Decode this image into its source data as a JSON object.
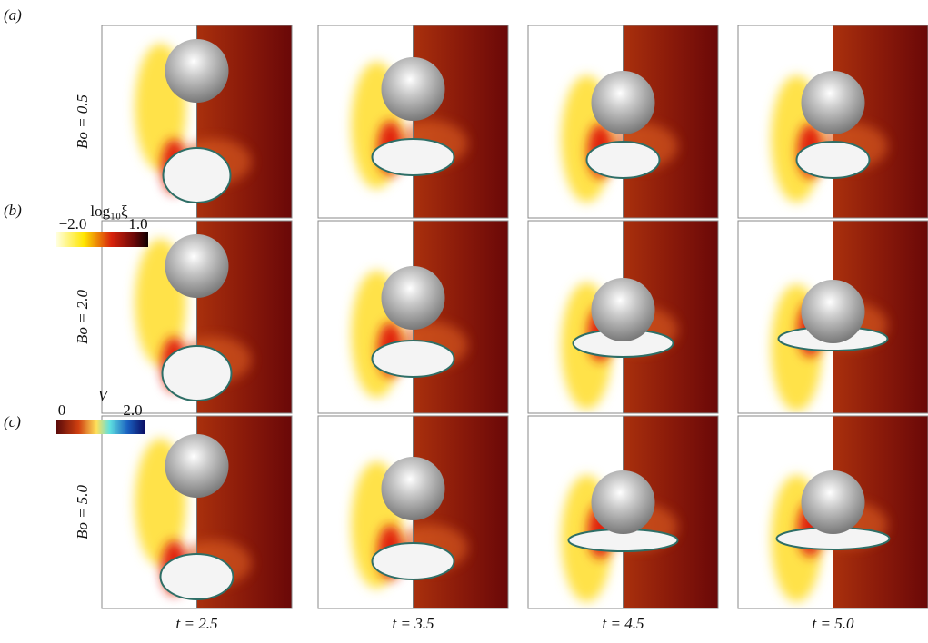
{
  "panel_labels": [
    "(a)",
    "(b)",
    "(c)"
  ],
  "rows": [
    "Bo = 0.5",
    "Bo = 2.0",
    "Bo = 5.0"
  ],
  "columns": [
    "t = 2.5",
    "t = 3.5",
    "t = 4.5",
    "t = 5.0"
  ],
  "colorbars": [
    {
      "title": "log₁₀ξ",
      "min": "−2.0",
      "max": "1.0"
    },
    {
      "title": "V",
      "min": "0",
      "max": "2.0"
    }
  ]
}
